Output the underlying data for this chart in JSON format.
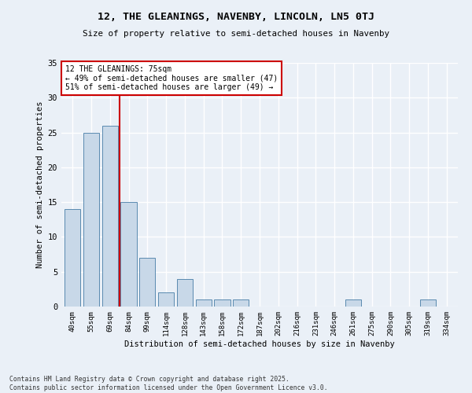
{
  "title_line1": "12, THE GLEANINGS, NAVENBY, LINCOLN, LN5 0TJ",
  "title_line2": "Size of property relative to semi-detached houses in Navenby",
  "xlabel": "Distribution of semi-detached houses by size in Navenby",
  "ylabel": "Number of semi-detached properties",
  "categories": [
    "40sqm",
    "55sqm",
    "69sqm",
    "84sqm",
    "99sqm",
    "114sqm",
    "128sqm",
    "143sqm",
    "158sqm",
    "172sqm",
    "187sqm",
    "202sqm",
    "216sqm",
    "231sqm",
    "246sqm",
    "261sqm",
    "275sqm",
    "290sqm",
    "305sqm",
    "319sqm",
    "334sqm"
  ],
  "values": [
    14,
    25,
    26,
    15,
    7,
    2,
    4,
    1,
    1,
    1,
    0,
    0,
    0,
    0,
    0,
    1,
    0,
    0,
    0,
    1,
    0
  ],
  "bar_color": "#c8d8e8",
  "bar_edge_color": "#5a8ab0",
  "red_line_index": 2.5,
  "annotation_text": "12 THE GLEANINGS: 75sqm\n← 49% of semi-detached houses are smaller (47)\n51% of semi-detached houses are larger (49) →",
  "annotation_box_color": "#ffffff",
  "annotation_box_edge": "#cc0000",
  "ylim": [
    0,
    35
  ],
  "yticks": [
    0,
    5,
    10,
    15,
    20,
    25,
    30,
    35
  ],
  "background_color": "#eaf0f7",
  "grid_color": "#ffffff",
  "footer_line1": "Contains HM Land Registry data © Crown copyright and database right 2025.",
  "footer_line2": "Contains public sector information licensed under the Open Government Licence v3.0."
}
